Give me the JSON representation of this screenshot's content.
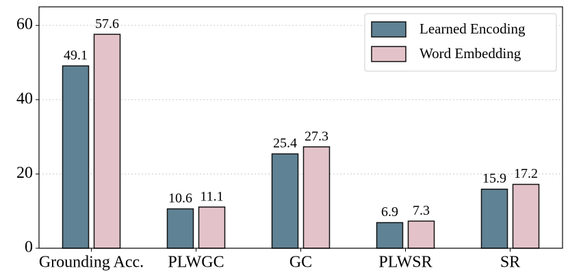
{
  "chart_data": {
    "type": "bar",
    "categories": [
      "Grounding Acc.",
      "PLWGC",
      "GC",
      "PLWSR",
      "SR"
    ],
    "series": [
      {
        "name": "Learned Encoding",
        "color": "#5f8294",
        "values": [
          49.1,
          10.6,
          25.4,
          6.9,
          15.9
        ]
      },
      {
        "name": "Word Embedding",
        "color": "#e3c3c9",
        "values": [
          57.6,
          11.1,
          27.3,
          7.3,
          17.2
        ]
      }
    ],
    "ylim": [
      0,
      65
    ],
    "yticks": [
      0,
      20,
      40,
      60
    ],
    "grid": true,
    "legend": "upper-right"
  }
}
